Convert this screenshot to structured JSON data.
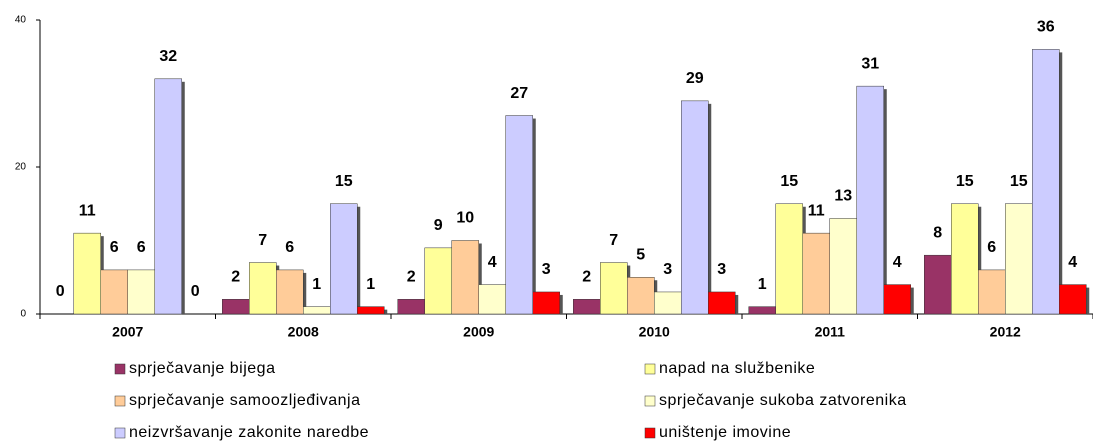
{
  "chart_data": {
    "type": "bar",
    "categories": [
      "2007",
      "2008",
      "2009",
      "2010",
      "2011",
      "2012"
    ],
    "series": [
      {
        "name": "sprječavanje bijega",
        "color": "#993366",
        "values": [
          0,
          2,
          2,
          2,
          1,
          8
        ]
      },
      {
        "name": "napad na službenike",
        "color": "#ffff99",
        "values": [
          11,
          7,
          9,
          7,
          15,
          15
        ]
      },
      {
        "name": "sprječavanje samoozljeđivanja",
        "color": "#ffcc99",
        "values": [
          6,
          6,
          10,
          5,
          11,
          6
        ]
      },
      {
        "name": "sprječavanje sukoba zatvorenika",
        "color": "#ffffcc",
        "values": [
          6,
          1,
          4,
          3,
          13,
          15
        ]
      },
      {
        "name": "neizvršavanje zakonite naredbe",
        "color": "#ccccff",
        "values": [
          32,
          15,
          27,
          29,
          31,
          36
        ]
      },
      {
        "name": "uništenje imovine",
        "color": "#ff0000",
        "values": [
          0,
          1,
          3,
          3,
          4,
          4
        ]
      }
    ],
    "ylim": [
      0,
      40
    ],
    "yticks": [
      0,
      20,
      40
    ],
    "grid": false,
    "legend": "bottom"
  }
}
